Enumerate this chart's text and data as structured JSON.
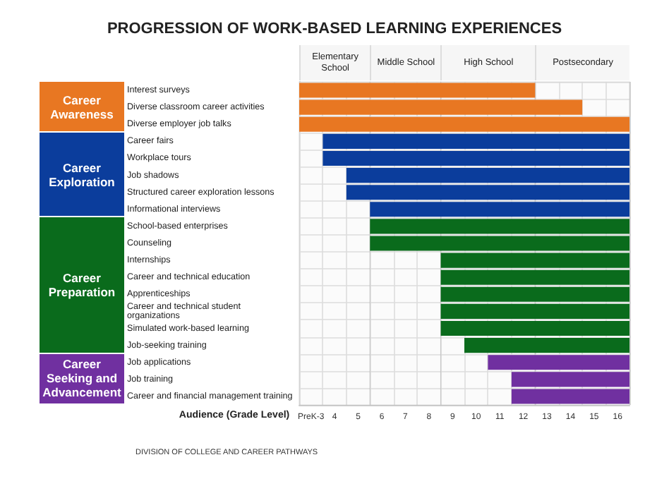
{
  "chart_data": {
    "type": "bar",
    "orientation": "horizontal",
    "title": "PROGRESSION OF WORK-BASED LEARNING EXPERIENCES",
    "xlabel": "Audience (Grade Level)",
    "categories": [
      "Interest surveys",
      "Diverse classroom career activities",
      "Diverse employer job talks",
      "Career fairs",
      "Workplace tours",
      "Job shadows",
      "Structured career exploration lessons",
      "Informational interviews",
      "School-based enterprises",
      "Counseling",
      "Internships",
      "Career and technical education",
      "Apprenticeships",
      "Career and technical student organizations",
      "Simulated work-based learning",
      "Job-seeking training",
      "Job applications",
      "Job training",
      "Career and financial management training"
    ],
    "base": [
      2.5,
      2.5,
      2.5,
      3.5,
      3.5,
      4.5,
      4.5,
      5.5,
      5.5,
      5.5,
      8.5,
      8.5,
      8.5,
      8.5,
      8.5,
      9.5,
      10.5,
      11.5,
      11.5
    ],
    "values": [
      10,
      12,
      14,
      13,
      13,
      12,
      12,
      11,
      11,
      11,
      8,
      8,
      8,
      8,
      8,
      7,
      6,
      5,
      5
    ],
    "colors": [
      "#e87722",
      "#e87722",
      "#e87722",
      "#0b3d9c",
      "#0b3d9c",
      "#0b3d9c",
      "#0b3d9c",
      "#0b3d9c",
      "#0a6b1c",
      "#0a6b1c",
      "#0a6b1c",
      "#0a6b1c",
      "#0a6b1c",
      "#0a6b1c",
      "#0a6b1c",
      "#0a6b1c",
      "#7030a0",
      "#7030a0",
      "#7030a0"
    ],
    "xlim": [
      2.5,
      16.5
    ],
    "xticks": [
      {
        "value": 2.5,
        "label": null
      },
      {
        "value": 3,
        "label": "PreK-3"
      },
      {
        "value": 3.5,
        "label": null
      },
      4,
      {
        "value": 4.5,
        "label": null
      },
      5,
      {
        "value": 5.5,
        "label": null
      },
      6,
      {
        "value": 6.5,
        "label": null
      },
      7,
      {
        "value": 7.5,
        "label": null
      },
      8,
      {
        "value": 8.5,
        "label": null
      },
      9,
      {
        "value": 9.5,
        "label": null
      },
      10,
      {
        "value": 10.5,
        "label": null
      },
      11,
      {
        "value": 11.5,
        "label": null
      },
      12,
      {
        "value": 12.5,
        "label": null
      },
      13,
      {
        "value": 13.5,
        "label": null
      },
      14,
      {
        "value": 14.5,
        "label": null
      },
      15,
      {
        "value": 15.5,
        "label": null
      },
      16,
      {
        "value": 16.5,
        "label": null
      }
    ],
    "bands": [
      {
        "axis": "x",
        "from": 2.5,
        "to": 5.5,
        "label": "Elementary School",
        "color": "#f6f6f6"
      },
      {
        "axis": "x",
        "from": 5.5,
        "to": 8.5,
        "label": "Middle School",
        "color": "#f6f6f6"
      },
      {
        "axis": "x",
        "from": 8.5,
        "to": 12.5,
        "label": "High School",
        "color": "#f6f6f6"
      },
      {
        "axis": "x",
        "from": 12.5,
        "to": 16.5,
        "label": "Postsecondary",
        "color": "#f6f6f6"
      }
    ],
    "grid": true,
    "annotations": [
      "Career Awareness",
      "Career Exploration",
      "Career Preparation",
      "Career Seeking and Advancement",
      "DIVISION OF COLLEGE AND CAREER PATHWAYS"
    ]
  }
}
